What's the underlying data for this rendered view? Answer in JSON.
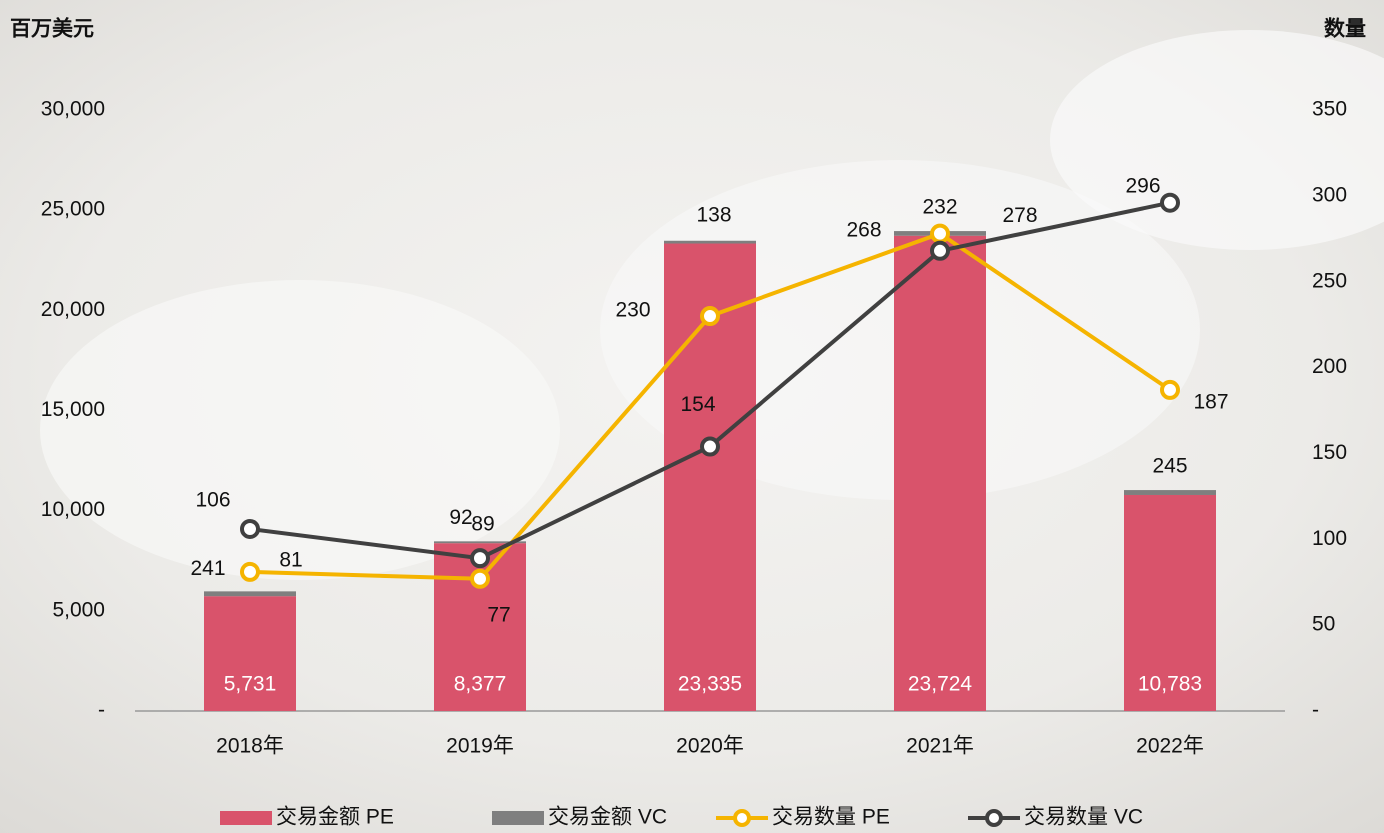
{
  "chart_data": {
    "type": "bar",
    "y_title": "百万美元",
    "y2_title": "数量",
    "categories": [
      "2018年",
      "2019年",
      "2020年",
      "2021年",
      "2022年"
    ],
    "series": [
      {
        "name": "交易金额 PE",
        "type": "bar",
        "color": "#d9536b",
        "values": [
          5731,
          8377,
          23335,
          23724,
          10783
        ],
        "value_labels": [
          "5,731",
          "8,377",
          "23,335",
          "23,724",
          "10,783"
        ]
      },
      {
        "name": "交易金额 VC",
        "type": "bar",
        "color": "#7f7f7f",
        "values": [
          241,
          92,
          138,
          232,
          245
        ]
      },
      {
        "name": "交易数量 PE",
        "type": "line",
        "axis": "y2",
        "color": "#f5b400",
        "values": [
          81,
          77,
          230,
          278,
          187
        ]
      },
      {
        "name": "交易数量 VC",
        "type": "line",
        "axis": "y2",
        "color": "#404040",
        "values": [
          106,
          89,
          154,
          268,
          296
        ]
      }
    ],
    "ylim": [
      0,
      30000
    ],
    "yticks": [
      {
        "value": 0,
        "label": "-"
      },
      {
        "value": 5000,
        "label": "5,000"
      },
      {
        "value": 10000,
        "label": "10,000"
      },
      {
        "value": 15000,
        "label": "15,000"
      },
      {
        "value": 20000,
        "label": "20,000"
      },
      {
        "value": 25000,
        "label": "25,000"
      },
      {
        "value": 30000,
        "label": "30,000"
      }
    ],
    "y2lim": [
      0,
      350
    ],
    "y2ticks": [
      {
        "value": 0,
        "label": "-"
      },
      50,
      100,
      150,
      200,
      250,
      300,
      350
    ],
    "legend": "bottom",
    "grid": false
  }
}
